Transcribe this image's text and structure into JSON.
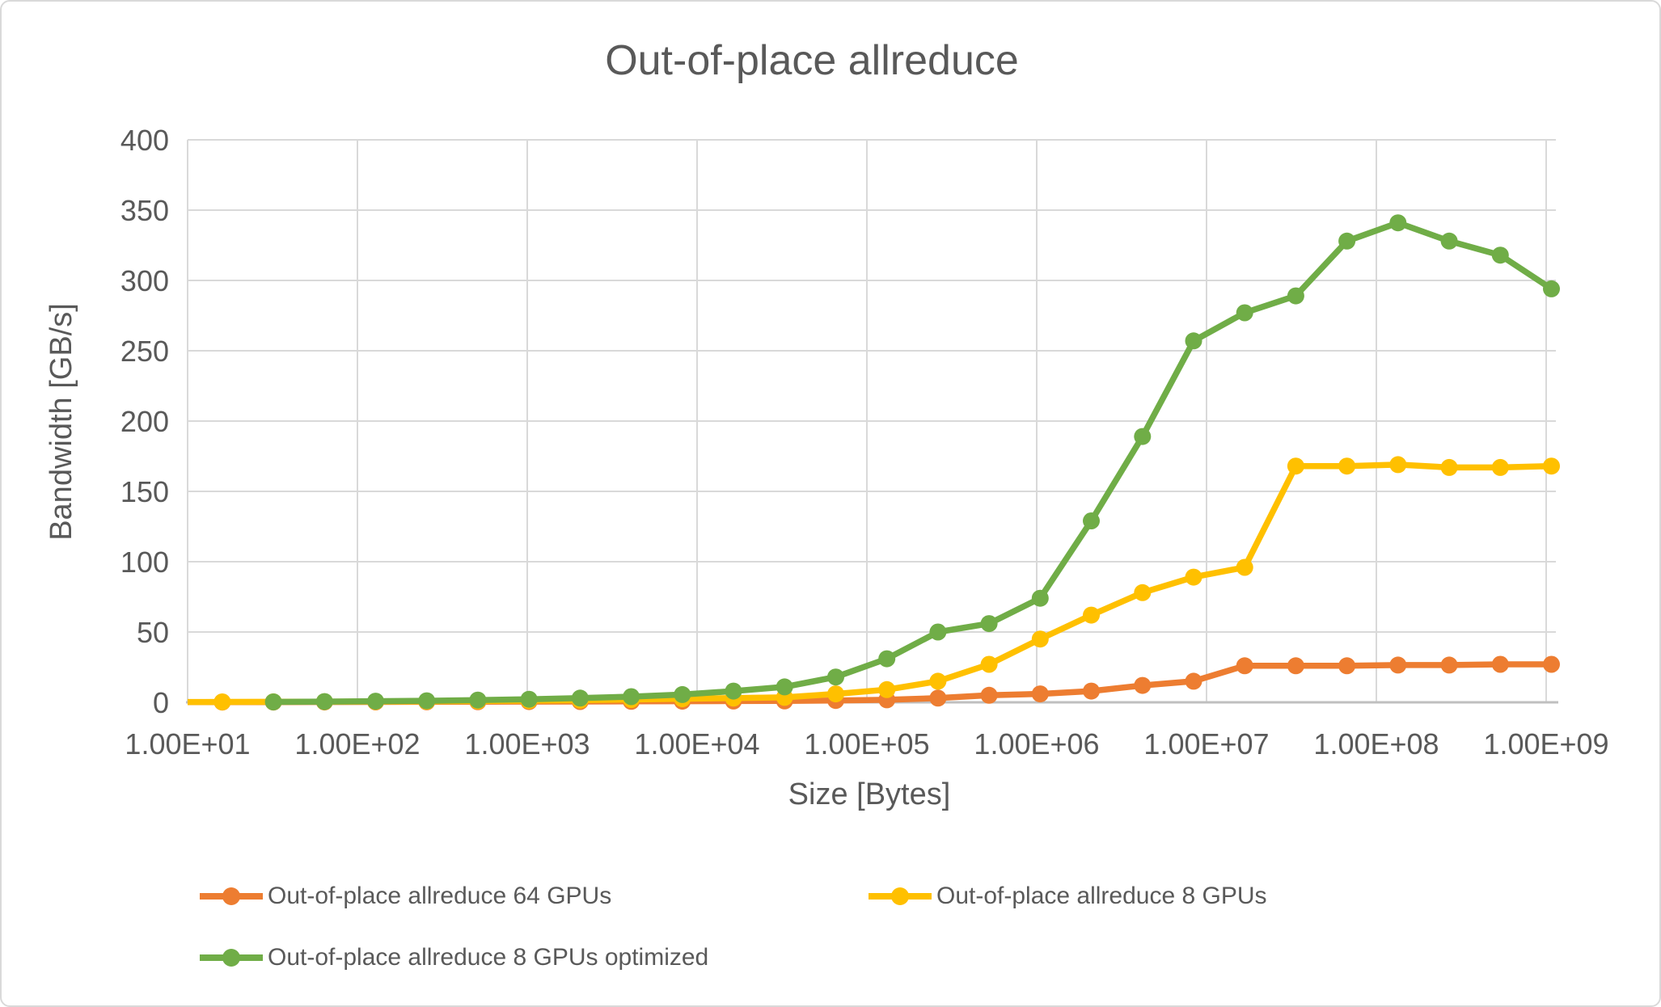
{
  "chart_data": {
    "type": "line",
    "title": "Out-of-place allreduce",
    "xlabel": "Size [Bytes]",
    "ylabel": "Bandwidth [GB/s]",
    "x_scale": "log",
    "grid": true,
    "legend_position": "bottom",
    "ylim": [
      0,
      400
    ],
    "y_ticks": [
      0,
      50,
      100,
      150,
      200,
      250,
      300,
      350,
      400
    ],
    "x_ticks": [
      {
        "value": 10,
        "label": "1.00E+01"
      },
      {
        "value": 100,
        "label": "1.00E+02"
      },
      {
        "value": 1000,
        "label": "1.00E+03"
      },
      {
        "value": 10000,
        "label": "1.00E+04"
      },
      {
        "value": 100000,
        "label": "1.00E+05"
      },
      {
        "value": 1000000,
        "label": "1.00E+06"
      },
      {
        "value": 10000000,
        "label": "1.00E+07"
      },
      {
        "value": 100000000,
        "label": "1.00E+08"
      },
      {
        "value": 1000000000,
        "label": "1.00E+09"
      }
    ],
    "series": [
      {
        "name": "Out-of-place allreduce 64 GPUs",
        "color": "#ED7D31",
        "sizes_bytes": [
          8,
          16,
          32,
          64,
          128,
          256,
          512,
          1024,
          2048,
          4096,
          8192,
          16384,
          32768,
          65536,
          131072,
          262144,
          524288,
          1048576,
          2097152,
          4194304,
          8388608,
          16777216,
          33554432,
          67108864,
          134217728,
          268435456,
          536870912,
          1073741824
        ],
        "bandwidth_gbs": [
          0.1,
          0.15,
          0.2,
          0.25,
          0.3,
          0.35,
          0.4,
          0.5,
          0.6,
          0.7,
          0.8,
          0.9,
          1.0,
          1.3,
          1.8,
          3,
          5,
          6,
          8,
          12,
          15,
          26,
          26,
          26,
          26.5,
          26.5,
          27,
          27
        ]
      },
      {
        "name": "Out-of-place allreduce 8 GPUs",
        "color": "#FFC000",
        "sizes_bytes": [
          8,
          16,
          32,
          64,
          128,
          256,
          512,
          1024,
          2048,
          4096,
          8192,
          16384,
          32768,
          65536,
          131072,
          262144,
          524288,
          1048576,
          2097152,
          4194304,
          8388608,
          16777216,
          33554432,
          67108864,
          134217728,
          268435456,
          536870912,
          1073741824
        ],
        "bandwidth_gbs": [
          0.2,
          0.3,
          0.35,
          0.45,
          0.55,
          0.7,
          0.9,
          1.2,
          1.5,
          2,
          2.5,
          3,
          3.5,
          6,
          9,
          15,
          27,
          45,
          62,
          78,
          89,
          96,
          168,
          168,
          169,
          167,
          167,
          168
        ]
      },
      {
        "name": "Out-of-place allreduce 8 GPUs optimized",
        "color": "#70AD47",
        "sizes_bytes": [
          32,
          64,
          128,
          256,
          512,
          1024,
          2048,
          4096,
          8192,
          16384,
          32768,
          65536,
          131072,
          262144,
          524288,
          1048576,
          2097152,
          4194304,
          8388608,
          16777216,
          33554432,
          67108864,
          134217728,
          268435456,
          536870912,
          1073741824
        ],
        "bandwidth_gbs": [
          0.3,
          0.5,
          0.8,
          1.1,
          1.6,
          2.2,
          3,
          4,
          5.5,
          8,
          11,
          18,
          31,
          50,
          56,
          74,
          129,
          189,
          257,
          277,
          289,
          328,
          341,
          328,
          318,
          294
        ]
      }
    ],
    "style": {
      "text_color": "#595959",
      "gridline_color": "#D9D9D9",
      "axis_line_color": "#BFBFBF",
      "background": "#FFFFFF"
    }
  }
}
